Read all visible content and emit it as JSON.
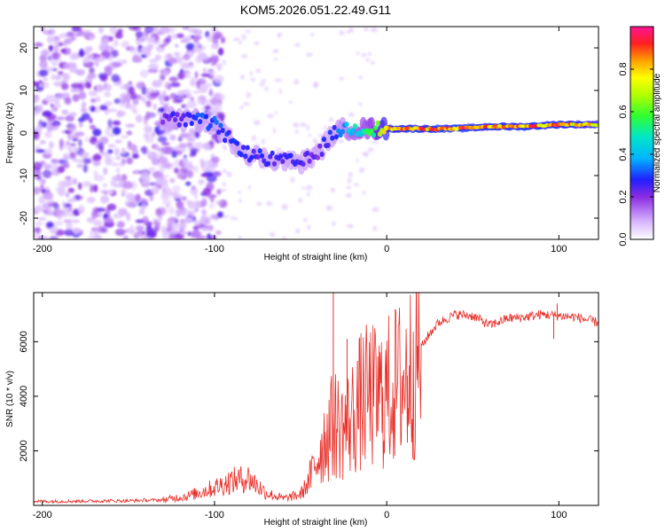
{
  "chart_data": [
    {
      "type": "heatmap",
      "title": "KOM5.2026.051.22.49.G11",
      "xlabel": "Height of straight line (km)",
      "ylabel": "Frequency (Hz)",
      "xlim": [
        -205,
        123
      ],
      "ylim": [
        -25,
        25
      ],
      "x_ticks": [
        -200,
        -100,
        0,
        100
      ],
      "x_tick_labels": [
        "-200",
        "-100",
        "0",
        "100"
      ],
      "y_ticks": [
        -20,
        -10,
        0,
        10,
        20
      ],
      "y_tick_labels": [
        "-20",
        "-10",
        "0",
        "10",
        "20"
      ],
      "colorbar": {
        "label": "Normalized spectral amplitude",
        "range": [
          0,
          1
        ],
        "ticks": [
          0.0,
          0.2,
          0.4,
          0.6,
          0.8
        ],
        "tick_labels": [
          "0.0",
          "0.2",
          "0.4",
          "0.6",
          "0.8"
        ]
      },
      "ridge": {
        "x": [
          -130,
          -120,
          -110,
          -100,
          -90,
          -80,
          -70,
          -60,
          -50,
          -40,
          -35,
          -30,
          -25,
          -20,
          -10,
          0,
          10,
          20,
          40,
          60,
          80,
          100,
          110,
          123
        ],
        "frequency": [
          4,
          3,
          3,
          2,
          -2,
          -5,
          -6,
          -6.5,
          -7,
          -5,
          -2,
          0,
          1,
          1,
          1,
          1,
          1,
          1,
          1,
          1.5,
          1.5,
          2,
          2,
          2
        ],
        "amplitude": [
          0.25,
          0.3,
          0.35,
          0.35,
          0.3,
          0.3,
          0.3,
          0.3,
          0.3,
          0.25,
          0.3,
          0.35,
          0.4,
          0.5,
          0.6,
          0.9,
          0.95,
          0.95,
          0.98,
          0.95,
          0.95,
          0.95,
          0.9,
          0.85
        ]
      }
    },
    {
      "type": "line",
      "title": "",
      "xlabel": "Height of straight line (km)",
      "ylabel": "SNR (10 * v/v)",
      "xlim": [
        -205,
        123
      ],
      "ylim": [
        0,
        7800
      ],
      "x_ticks": [
        -200,
        -100,
        0,
        100
      ],
      "x_tick_labels": [
        "-200",
        "-100",
        "0",
        "100"
      ],
      "y_ticks": [
        2000,
        4000,
        6000
      ],
      "y_tick_labels": [
        "2000",
        "4000",
        "6000"
      ],
      "color": "#e8302a",
      "series": [
        {
          "name": "SNR",
          "x": [
            -205,
            -190,
            -170,
            -150,
            -130,
            -115,
            -100,
            -90,
            -80,
            -70,
            -60,
            -50,
            -45,
            -40,
            -35,
            -30,
            -25,
            -20,
            -15,
            -10,
            -5,
            0,
            5,
            10,
            15,
            20,
            25,
            30,
            40,
            50,
            60,
            70,
            80,
            90,
            100,
            110,
            123
          ],
          "y": [
            150,
            150,
            160,
            170,
            200,
            350,
            650,
            900,
            1000,
            450,
            250,
            400,
            900,
            1800,
            2600,
            3000,
            2800,
            3200,
            3800,
            4000,
            3900,
            4100,
            4400,
            4600,
            5000,
            5800,
            6300,
            6700,
            7000,
            6950,
            6600,
            6850,
            6900,
            7000,
            6950,
            6900,
            6700
          ]
        }
      ],
      "spikes": [
        {
          "x": -31,
          "y": 7800
        },
        {
          "x": -23,
          "y": 6100
        },
        {
          "x": -17,
          "y": 5300
        },
        {
          "x": 12,
          "y": 2300
        },
        {
          "x": 97,
          "y": 6100
        },
        {
          "x": 99,
          "y": 7400
        }
      ]
    }
  ]
}
